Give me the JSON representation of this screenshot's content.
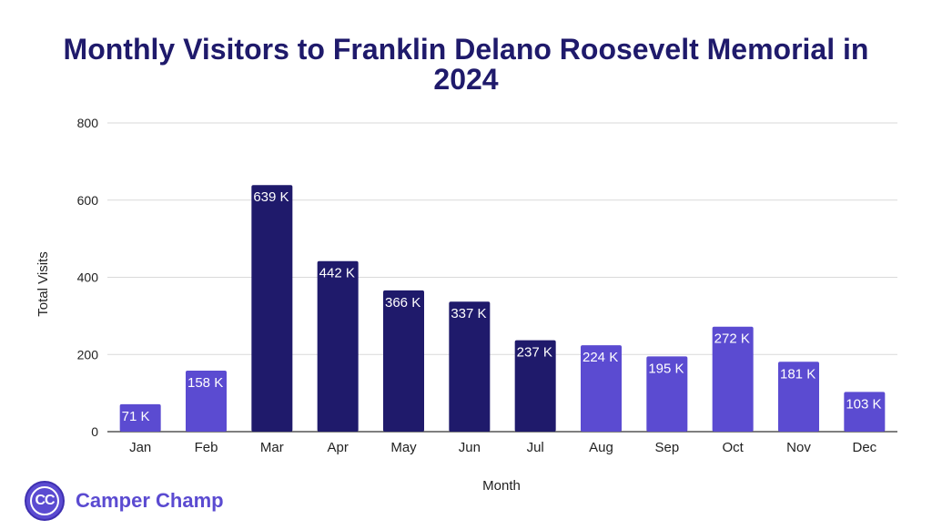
{
  "chart_data": {
    "type": "bar",
    "title": "Monthly Visitors to Franklin Delano Roosevelt Memorial in 2024",
    "xlabel": "Month",
    "ylabel": "Total Visits",
    "ylim": [
      0,
      800
    ],
    "yticks": [
      0,
      200,
      400,
      600,
      800
    ],
    "grid": true,
    "categories": [
      "Jan",
      "Feb",
      "Mar",
      "Apr",
      "May",
      "Jun",
      "Jul",
      "Aug",
      "Sep",
      "Oct",
      "Nov",
      "Dec"
    ],
    "values": [
      71,
      158,
      639,
      442,
      366,
      337,
      237,
      224,
      195,
      272,
      181,
      103
    ],
    "data_labels": [
      "71 K",
      "158 K",
      "639 K",
      "442 K",
      "366 K",
      "337 K",
      "237 K",
      "224 K",
      "195 K",
      "272 K",
      "181 K",
      "103 K"
    ],
    "bar_colors": [
      "#5b4bd1",
      "#5b4bd1",
      "#1f1a6b",
      "#1f1a6b",
      "#1f1a6b",
      "#1f1a6b",
      "#1f1a6b",
      "#5b4bd1",
      "#5b4bd1",
      "#5b4bd1",
      "#5b4bd1",
      "#5b4bd1"
    ]
  },
  "colors": {
    "title": "#1f1a6b",
    "peak_bar": "#1f1a6b",
    "regular_bar": "#5b4bd1",
    "grid": "#d9d9d9",
    "axis_text": "#222222",
    "brand": "#5b4bd1"
  },
  "brand": {
    "logo_text": "CC",
    "name": "Camper Champ"
  }
}
